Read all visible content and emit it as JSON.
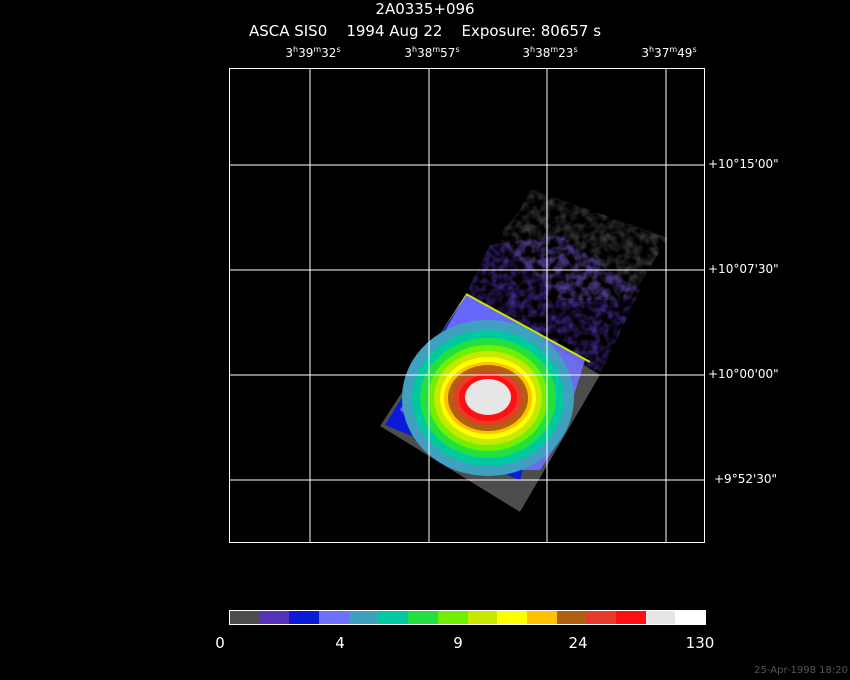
{
  "header": {
    "object": "2A0335+096",
    "line2": "ASCA SIS0    1994 Aug 22    Exposure: 80657 s"
  },
  "ra_ticks": [
    {
      "h": "3",
      "m": "39",
      "s": "32"
    },
    {
      "h": "3",
      "m": "38",
      "s": "57"
    },
    {
      "h": "3",
      "m": "38",
      "s": "23"
    },
    {
      "h": "3",
      "m": "37",
      "s": "49"
    }
  ],
  "dec_ticks": [
    "+10°15'00\"",
    "+10°07'30\"",
    "+10°00'00\"",
    "+9°52'30\""
  ],
  "colorbar": {
    "colors": [
      "#4d4d4d",
      "#5533bb",
      "#0a1ad6",
      "#7070ff",
      "#3fa0c0",
      "#00c8a0",
      "#22e040",
      "#70f000",
      "#c8e800",
      "#ffff00",
      "#ffc000",
      "#b06010",
      "#e83a2a",
      "#ff1010",
      "#e6e6e6",
      "#ffffff"
    ],
    "labels": [
      "0",
      "4",
      "9",
      "24",
      "130"
    ]
  },
  "footer": "25-Apr-1998 18:20"
}
